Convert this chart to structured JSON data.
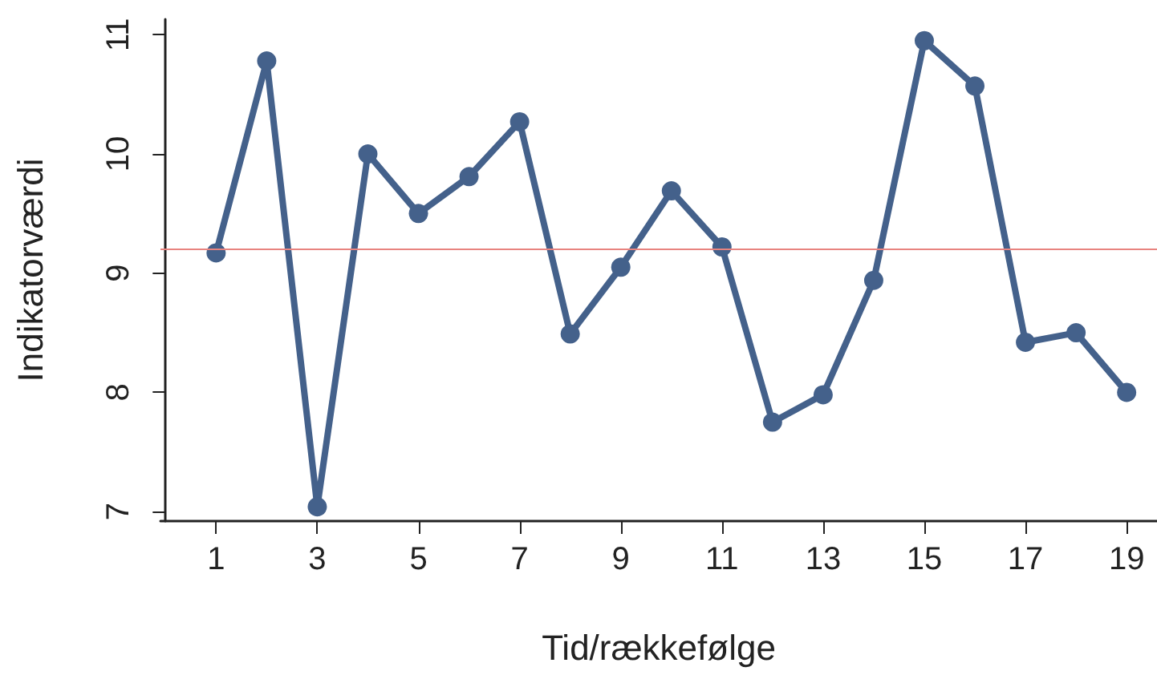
{
  "chart_data": {
    "type": "line",
    "xlabel": "Tid/rækkefølge",
    "ylabel": "Indikatorværdi",
    "x": [
      1,
      2,
      3,
      4,
      5,
      6,
      7,
      8,
      9,
      10,
      11,
      12,
      13,
      14,
      15,
      16,
      17,
      18,
      19
    ],
    "series": [
      {
        "color": "#44618b",
        "values": [
          9.17,
          10.78,
          7.04,
          10.0,
          9.5,
          9.81,
          10.27,
          8.49,
          9.05,
          9.69,
          9.22,
          7.75,
          7.98,
          8.94,
          10.95,
          10.57,
          8.42,
          8.5,
          8.0
        ]
      }
    ],
    "xlim": [
      -0.1,
      19.6
    ],
    "xticks": [
      1,
      3,
      5,
      7,
      9,
      11,
      13,
      15,
      17,
      19
    ],
    "ylim": [
      6.92,
      11.13
    ],
    "yticks": [
      7,
      8,
      9,
      10,
      11
    ],
    "ref_lines": [
      {
        "axis": "y",
        "value": 9.2,
        "color": "#e8837f"
      }
    ],
    "marker": "circle",
    "line_style": "solid",
    "grid": false
  }
}
